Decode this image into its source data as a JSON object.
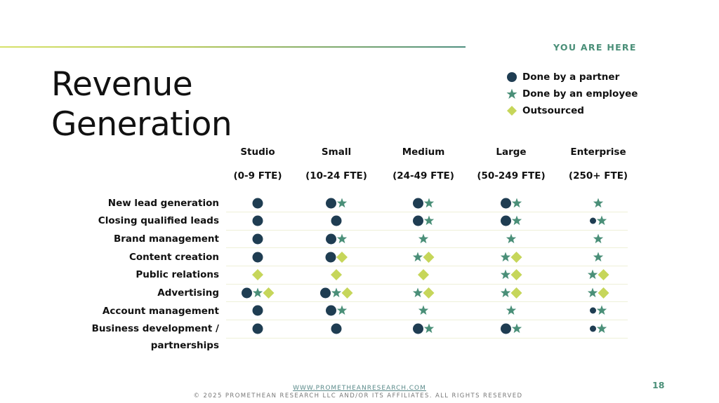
{
  "header": {
    "marker": "YOU ARE HERE"
  },
  "title": {
    "line1": "Revenue",
    "line2": "Generation"
  },
  "legend": {
    "items": [
      {
        "label": "Done by a partner",
        "icon": "circle-icon",
        "color": "#1f3d52"
      },
      {
        "label": "Done by an employee",
        "icon": "star-icon",
        "color": "#4a8f78"
      },
      {
        "label": "Outsourced",
        "icon": "diamond-icon",
        "color": "#c6d65a"
      }
    ]
  },
  "columns": [
    {
      "name": "Studio",
      "range": "(0-9 FTE)"
    },
    {
      "name": "Small",
      "range": "(10-24 FTE)"
    },
    {
      "name": "Medium",
      "range": "(24-49 FTE)"
    },
    {
      "name": "Large",
      "range": "(50-249 FTE)"
    },
    {
      "name": "Enterprise",
      "range": "(250+ FTE)"
    }
  ],
  "rows": [
    {
      "label": "New lead generation",
      "cells": [
        [
          "P"
        ],
        [
          "P",
          "E"
        ],
        [
          "P",
          "E"
        ],
        [
          "P",
          "E"
        ],
        [
          "E"
        ]
      ]
    },
    {
      "label": "Closing qualified leads",
      "cells": [
        [
          "P"
        ],
        [
          "P"
        ],
        [
          "P",
          "E"
        ],
        [
          "P",
          "E"
        ],
        [
          "p",
          "E"
        ]
      ]
    },
    {
      "label": "Brand management",
      "cells": [
        [
          "P"
        ],
        [
          "P",
          "E"
        ],
        [
          "E"
        ],
        [
          "E"
        ],
        [
          "E"
        ]
      ]
    },
    {
      "label": "Content creation",
      "cells": [
        [
          "P"
        ],
        [
          "P",
          "O"
        ],
        [
          "E",
          "O"
        ],
        [
          "E",
          "O"
        ],
        [
          "E"
        ]
      ]
    },
    {
      "label": "Public relations",
      "cells": [
        [
          "O"
        ],
        [
          "O"
        ],
        [
          "O"
        ],
        [
          "E",
          "O"
        ],
        [
          "E",
          "O"
        ]
      ]
    },
    {
      "label": "Advertising",
      "cells": [
        [
          "P",
          "E",
          "O"
        ],
        [
          "P",
          "E",
          "O"
        ],
        [
          "E",
          "O"
        ],
        [
          "E",
          "O"
        ],
        [
          "E",
          "O"
        ]
      ]
    },
    {
      "label": "Account management",
      "cells": [
        [
          "P"
        ],
        [
          "P",
          "E"
        ],
        [
          "E"
        ],
        [
          "E"
        ],
        [
          "p",
          "E"
        ]
      ]
    },
    {
      "label": "Business development /",
      "label2": "partnerships",
      "cells": [
        [
          "P"
        ],
        [
          "P"
        ],
        [
          "P",
          "E"
        ],
        [
          "P",
          "E"
        ],
        [
          "p",
          "E"
        ]
      ]
    }
  ],
  "footer": {
    "url": "WWW.PROMETHEANRESEARCH.COM",
    "copyright": "© 2025 PROMETHEAN RESEARCH LLC AND/OR ITS AFFILIATES. ALL RIGHTS RESERVED",
    "page": "18"
  }
}
